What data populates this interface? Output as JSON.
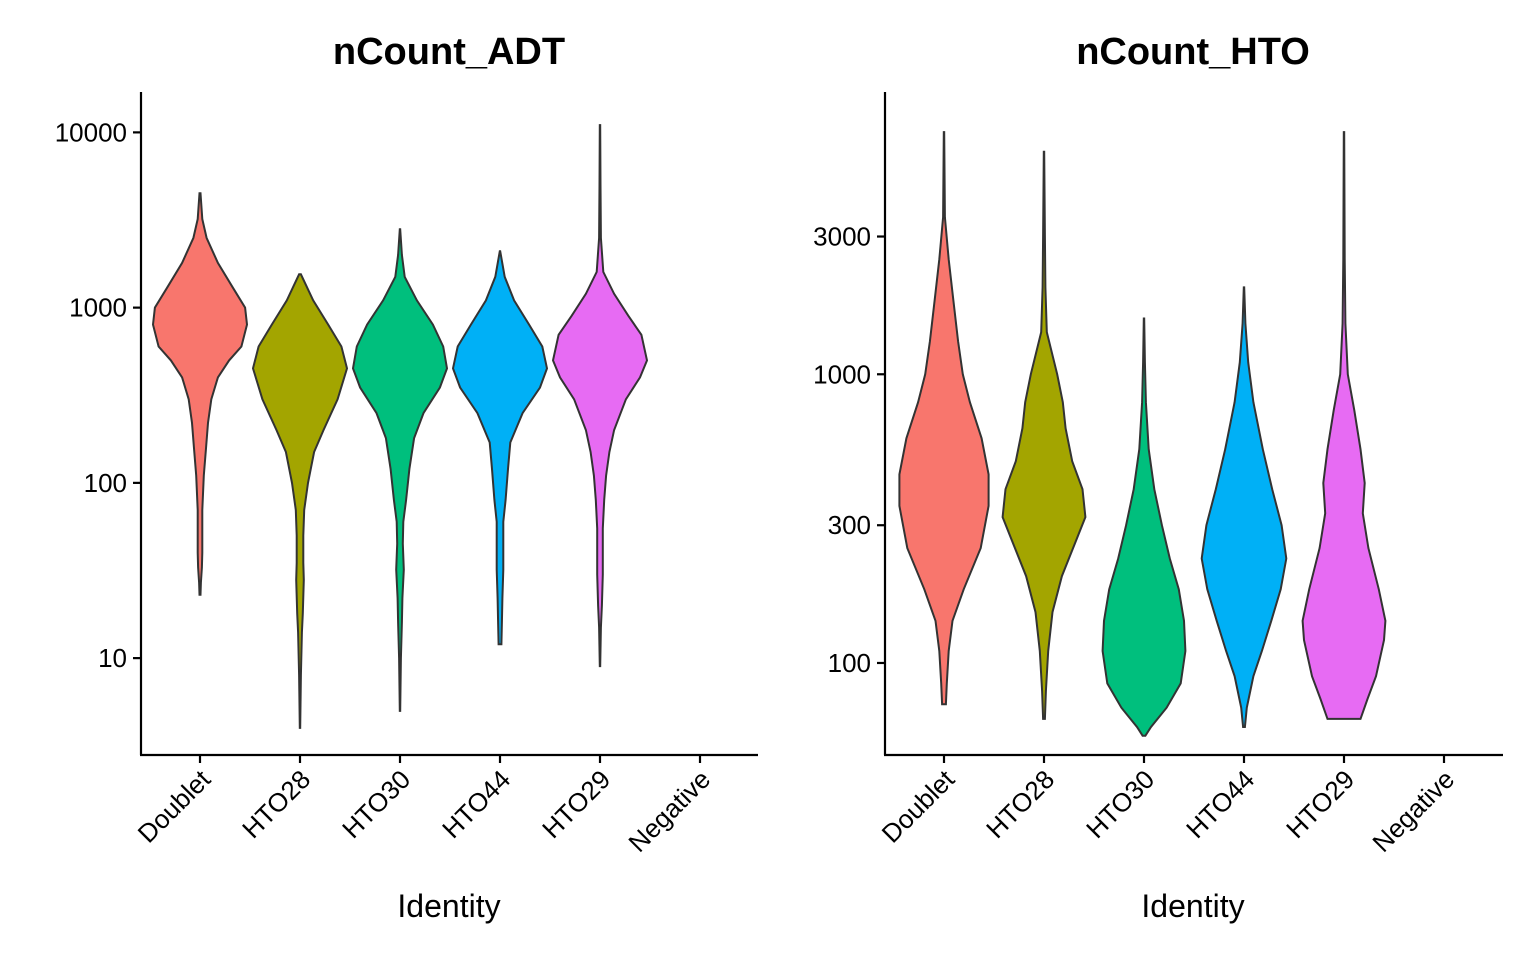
{
  "chart_data": [
    {
      "type": "violin",
      "title": "nCount_ADT",
      "xlabel": "Identity",
      "ylabel": "",
      "yscale": "log",
      "ylim": [
        2.8,
        17000
      ],
      "yticks": [
        10,
        100,
        1000,
        10000
      ],
      "ytick_labels": [
        "10",
        "100",
        "1000",
        "10000"
      ],
      "categories": [
        "Doublet",
        "HTO28",
        "HTO30",
        "HTO44",
        "HTO29",
        "Negative"
      ],
      "colors": [
        "#F8766D",
        "#A3A500",
        "#00BF7D",
        "#00B0F6",
        "#E76BF3"
      ],
      "violins": [
        {
          "category": "Doublet",
          "min": 23,
          "max": 4500,
          "profile": [
            [
              23,
              0.01
            ],
            [
              27,
              0.02
            ],
            [
              33,
              0.04
            ],
            [
              40,
              0.05
            ],
            [
              70,
              0.05
            ],
            [
              110,
              0.08
            ],
            [
              160,
              0.13
            ],
            [
              220,
              0.17
            ],
            [
              300,
              0.24
            ],
            [
              400,
              0.38
            ],
            [
              500,
              0.62
            ],
            [
              600,
              0.88
            ],
            [
              800,
              1.0
            ],
            [
              1000,
              0.96
            ],
            [
              1300,
              0.7
            ],
            [
              1800,
              0.38
            ],
            [
              2500,
              0.14
            ],
            [
              3200,
              0.05
            ],
            [
              4500,
              0.01
            ]
          ]
        },
        {
          "category": "HTO28",
          "min": 4,
          "max": 1550,
          "profile": [
            [
              4,
              0.005
            ],
            [
              8,
              0.02
            ],
            [
              14,
              0.04
            ],
            [
              18,
              0.06
            ],
            [
              28,
              0.08
            ],
            [
              35,
              0.07
            ],
            [
              50,
              0.07
            ],
            [
              70,
              0.09
            ],
            [
              100,
              0.17
            ],
            [
              150,
              0.3
            ],
            [
              200,
              0.5
            ],
            [
              300,
              0.8
            ],
            [
              450,
              1.0
            ],
            [
              600,
              0.88
            ],
            [
              800,
              0.6
            ],
            [
              1100,
              0.28
            ],
            [
              1550,
              0.02
            ]
          ]
        },
        {
          "category": "HTO30",
          "min": 5,
          "max": 2800,
          "profile": [
            [
              5,
              0.005
            ],
            [
              10,
              0.02
            ],
            [
              16,
              0.04
            ],
            [
              22,
              0.05
            ],
            [
              32,
              0.08
            ],
            [
              45,
              0.06
            ],
            [
              60,
              0.07
            ],
            [
              80,
              0.13
            ],
            [
              120,
              0.2
            ],
            [
              180,
              0.3
            ],
            [
              250,
              0.5
            ],
            [
              350,
              0.85
            ],
            [
              450,
              1.0
            ],
            [
              600,
              0.92
            ],
            [
              800,
              0.7
            ],
            [
              1100,
              0.36
            ],
            [
              1500,
              0.1
            ],
            [
              2000,
              0.04
            ],
            [
              2800,
              0.005
            ]
          ]
        },
        {
          "category": "HTO44",
          "min": 12,
          "max": 2100,
          "profile": [
            [
              12,
              0.03
            ],
            [
              16,
              0.04
            ],
            [
              22,
              0.05
            ],
            [
              32,
              0.07
            ],
            [
              45,
              0.07
            ],
            [
              60,
              0.07
            ],
            [
              80,
              0.12
            ],
            [
              120,
              0.17
            ],
            [
              170,
              0.22
            ],
            [
              250,
              0.48
            ],
            [
              350,
              0.85
            ],
            [
              450,
              1.0
            ],
            [
              600,
              0.9
            ],
            [
              800,
              0.62
            ],
            [
              1100,
              0.3
            ],
            [
              1500,
              0.1
            ],
            [
              2100,
              0.005
            ]
          ]
        },
        {
          "category": "HTO29",
          "min": 9,
          "max": 11000,
          "profile": [
            [
              9,
              0.005
            ],
            [
              15,
              0.02
            ],
            [
              20,
              0.04
            ],
            [
              30,
              0.06
            ],
            [
              40,
              0.06
            ],
            [
              55,
              0.06
            ],
            [
              80,
              0.09
            ],
            [
              110,
              0.13
            ],
            [
              150,
              0.2
            ],
            [
              200,
              0.3
            ],
            [
              300,
              0.55
            ],
            [
              400,
              0.85
            ],
            [
              500,
              1.0
            ],
            [
              700,
              0.88
            ],
            [
              900,
              0.6
            ],
            [
              1200,
              0.3
            ],
            [
              1600,
              0.07
            ],
            [
              2500,
              0.02
            ],
            [
              5000,
              0.01
            ],
            [
              11000,
              0.005
            ]
          ]
        }
      ]
    },
    {
      "type": "violin",
      "title": "nCount_HTO",
      "xlabel": "Identity",
      "ylabel": "",
      "yscale": "log",
      "ylim": [
        48,
        9500
      ],
      "yticks": [
        100,
        300,
        1000,
        3000
      ],
      "ytick_labels": [
        "100",
        "300",
        "1000",
        "3000"
      ],
      "categories": [
        "Doublet",
        "HTO28",
        "HTO30",
        "HTO44",
        "HTO29",
        "Negative"
      ],
      "colors": [
        "#F8766D",
        "#A3A500",
        "#00BF7D",
        "#00B0F6",
        "#E76BF3"
      ],
      "violins": [
        {
          "category": "Doublet",
          "min": 72,
          "max": 6900,
          "profile": [
            [
              72,
              0.04
            ],
            [
              85,
              0.06
            ],
            [
              110,
              0.1
            ],
            [
              140,
              0.18
            ],
            [
              180,
              0.42
            ],
            [
              250,
              0.78
            ],
            [
              350,
              0.95
            ],
            [
              450,
              0.95
            ],
            [
              600,
              0.8
            ],
            [
              800,
              0.55
            ],
            [
              1000,
              0.4
            ],
            [
              1300,
              0.3
            ],
            [
              1800,
              0.2
            ],
            [
              2500,
              0.1
            ],
            [
              3500,
              0.02
            ],
            [
              6900,
              0.005
            ]
          ]
        },
        {
          "category": "HTO28",
          "min": 64,
          "max": 5900,
          "profile": [
            [
              64,
              0.02
            ],
            [
              80,
              0.04
            ],
            [
              110,
              0.09
            ],
            [
              150,
              0.18
            ],
            [
              200,
              0.38
            ],
            [
              260,
              0.66
            ],
            [
              320,
              0.88
            ],
            [
              400,
              0.82
            ],
            [
              500,
              0.6
            ],
            [
              650,
              0.46
            ],
            [
              800,
              0.4
            ],
            [
              1000,
              0.28
            ],
            [
              1400,
              0.06
            ],
            [
              2000,
              0.03
            ],
            [
              3000,
              0.02
            ],
            [
              5900,
              0.005
            ]
          ]
        },
        {
          "category": "HTO30",
          "min": 56,
          "max": 1560,
          "profile": [
            [
              56,
              0.03
            ],
            [
              60,
              0.15
            ],
            [
              70,
              0.48
            ],
            [
              85,
              0.78
            ],
            [
              110,
              0.88
            ],
            [
              140,
              0.85
            ],
            [
              180,
              0.74
            ],
            [
              230,
              0.55
            ],
            [
              300,
              0.38
            ],
            [
              400,
              0.22
            ],
            [
              550,
              0.1
            ],
            [
              800,
              0.04
            ],
            [
              1100,
              0.02
            ],
            [
              1560,
              0.005
            ]
          ]
        },
        {
          "category": "HTO44",
          "min": 60,
          "max": 2000,
          "profile": [
            [
              60,
              0.02
            ],
            [
              70,
              0.06
            ],
            [
              90,
              0.2
            ],
            [
              110,
              0.38
            ],
            [
              140,
              0.58
            ],
            [
              180,
              0.78
            ],
            [
              230,
              0.9
            ],
            [
              300,
              0.8
            ],
            [
              400,
              0.6
            ],
            [
              550,
              0.4
            ],
            [
              800,
              0.2
            ],
            [
              1100,
              0.09
            ],
            [
              1500,
              0.03
            ],
            [
              2000,
              0.005
            ]
          ]
        },
        {
          "category": "HTO29",
          "min": 64,
          "max": 6900,
          "profile": [
            [
              64,
              0.35
            ],
            [
              75,
              0.5
            ],
            [
              90,
              0.68
            ],
            [
              120,
              0.85
            ],
            [
              140,
              0.88
            ],
            [
              180,
              0.74
            ],
            [
              250,
              0.52
            ],
            [
              330,
              0.4
            ],
            [
              420,
              0.44
            ],
            [
              550,
              0.35
            ],
            [
              750,
              0.22
            ],
            [
              1000,
              0.08
            ],
            [
              1500,
              0.03
            ],
            [
              2500,
              0.015
            ],
            [
              6900,
              0.005
            ]
          ]
        }
      ]
    }
  ]
}
